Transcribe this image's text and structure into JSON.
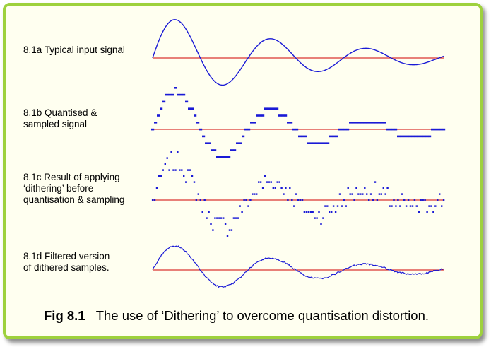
{
  "colors": {
    "frame_border": "#9ed13d",
    "frame_fill": "#fffff0",
    "signal": "#1a1ad6",
    "baseline": "#d00000"
  },
  "panels": [
    {
      "id": "a",
      "label": "8.1a Typical input signal",
      "style": "curve"
    },
    {
      "id": "b",
      "label": "8.1b Quantised &\nsampled signal",
      "style": "quantised"
    },
    {
      "id": "c",
      "label": "8.1c Result of applying\n‘dithering’ before\nquantisation & sampling",
      "style": "dithered-points"
    },
    {
      "id": "d",
      "label": "8.1d Filtered version\nof dithered samples.",
      "style": "filtered-curve"
    }
  ],
  "caption": {
    "number": "Fig 8.1",
    "text": "The use of ‘Dithering’ to overcome quantisation distortion."
  }
}
